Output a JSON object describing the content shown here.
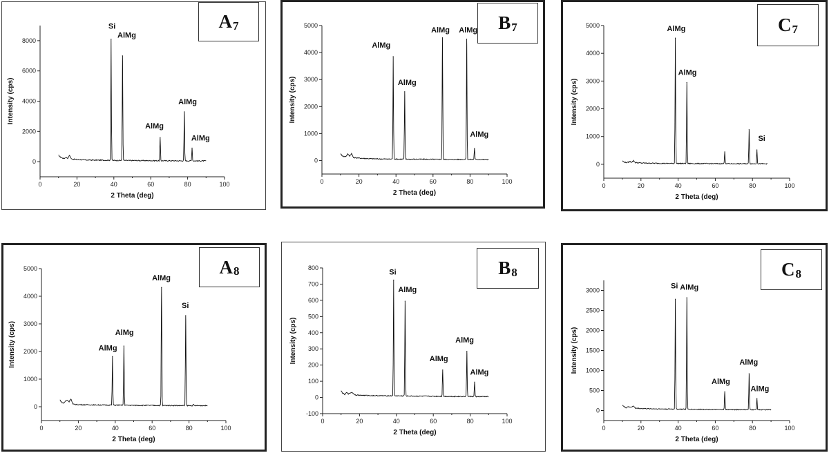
{
  "chart_data": [
    {
      "type": "line",
      "panel": "A7",
      "tag": {
        "letter": "A",
        "sub": "7"
      },
      "xlabel": "2 Theta (deg)",
      "ylabel": "Intensity (cps)",
      "xlim": [
        0,
        100
      ],
      "ylim": [
        -1000,
        9000
      ],
      "xticks": [
        0,
        20,
        40,
        60,
        80,
        100
      ],
      "yticks": [
        0,
        2000,
        4000,
        6000,
        8000
      ],
      "baseline": [
        [
          10,
          420
        ],
        [
          11,
          300
        ],
        [
          12,
          240
        ],
        [
          13,
          210
        ],
        [
          14,
          280
        ],
        [
          15,
          230
        ],
        [
          16,
          420
        ],
        [
          17,
          180
        ],
        [
          20,
          140
        ],
        [
          25,
          110
        ],
        [
          30,
          100
        ],
        [
          35,
          95
        ],
        [
          38,
          90
        ],
        [
          40,
          80
        ],
        [
          45,
          80
        ],
        [
          50,
          75
        ],
        [
          55,
          70
        ],
        [
          60,
          65
        ],
        [
          65,
          60
        ],
        [
          70,
          60
        ],
        [
          75,
          55
        ],
        [
          80,
          55
        ],
        [
          85,
          50
        ],
        [
          90,
          50
        ]
      ],
      "peaks": [
        {
          "x": 38.5,
          "y": 8100
        },
        {
          "x": 44.7,
          "y": 7000
        },
        {
          "x": 65.1,
          "y": 1600
        },
        {
          "x": 78.2,
          "y": 3300
        },
        {
          "x": 82.4,
          "y": 900
        }
      ],
      "annotations": [
        {
          "text": "Si",
          "x": 39,
          "y": 8800
        },
        {
          "text": "AlMg",
          "x": 47,
          "y": 8200
        },
        {
          "text": "AlMg",
          "x": 62,
          "y": 2200
        },
        {
          "text": "AlMg",
          "x": 80,
          "y": 3800
        },
        {
          "text": "AlMg",
          "x": 87,
          "y": 1400
        }
      ]
    },
    {
      "type": "line",
      "panel": "B7",
      "tag": {
        "letter": "B",
        "sub": "7"
      },
      "xlabel": "2 Theta (deg)",
      "ylabel": "Intensity (cps)",
      "xlim": [
        0,
        100
      ],
      "ylim": [
        -500,
        5000
      ],
      "xticks": [
        0,
        20,
        40,
        60,
        80,
        100
      ],
      "yticks": [
        0,
        1000,
        2000,
        3000,
        4000,
        5000
      ],
      "baseline": [
        [
          10,
          250
        ],
        [
          11,
          180
        ],
        [
          12,
          140
        ],
        [
          13,
          160
        ],
        [
          14,
          240
        ],
        [
          15,
          170
        ],
        [
          16,
          260
        ],
        [
          17,
          110
        ],
        [
          20,
          90
        ],
        [
          25,
          70
        ],
        [
          30,
          60
        ],
        [
          35,
          55
        ],
        [
          40,
          55
        ],
        [
          45,
          50
        ],
        [
          50,
          50
        ],
        [
          55,
          48
        ],
        [
          60,
          45
        ],
        [
          65,
          45
        ],
        [
          70,
          40
        ],
        [
          75,
          40
        ],
        [
          80,
          40
        ],
        [
          85,
          38
        ],
        [
          90,
          38
        ]
      ],
      "peaks": [
        {
          "x": 38.5,
          "y": 3850
        },
        {
          "x": 44.7,
          "y": 2550
        },
        {
          "x": 65.1,
          "y": 4550
        },
        {
          "x": 78.2,
          "y": 4500
        },
        {
          "x": 82.4,
          "y": 450
        }
      ],
      "annotations": [
        {
          "text": "AlMg",
          "x": 32,
          "y": 4180
        },
        {
          "text": "AlMg",
          "x": 46,
          "y": 2800
        },
        {
          "text": "AlMg",
          "x": 64,
          "y": 4750
        },
        {
          "text": "AlMg",
          "x": 79,
          "y": 4750
        },
        {
          "text": "AlMg",
          "x": 85,
          "y": 880
        }
      ]
    },
    {
      "type": "line",
      "panel": "C7",
      "tag": {
        "letter": "C",
        "sub": "7"
      },
      "xlabel": "2 Theta (deg)",
      "ylabel": "Intensity (cps)",
      "xlim": [
        0,
        100
      ],
      "ylim": [
        -500,
        5000
      ],
      "xticks": [
        0,
        20,
        40,
        60,
        80,
        100
      ],
      "yticks": [
        0,
        1000,
        2000,
        3000,
        4000,
        5000
      ],
      "baseline": [
        [
          10,
          120
        ],
        [
          11,
          80
        ],
        [
          12,
          60
        ],
        [
          13,
          70
        ],
        [
          14,
          100
        ],
        [
          15,
          80
        ],
        [
          16,
          130
        ],
        [
          17,
          60
        ],
        [
          20,
          45
        ],
        [
          25,
          40
        ],
        [
          30,
          35
        ],
        [
          35,
          30
        ],
        [
          40,
          30
        ],
        [
          45,
          28
        ],
        [
          50,
          25
        ],
        [
          55,
          25
        ],
        [
          60,
          22
        ],
        [
          65,
          22
        ],
        [
          70,
          20
        ],
        [
          75,
          20
        ],
        [
          80,
          20
        ],
        [
          85,
          18
        ],
        [
          88,
          18
        ]
      ],
      "peaks": [
        {
          "x": 38.5,
          "y": 4550
        },
        {
          "x": 44.7,
          "y": 2950
        },
        {
          "x": 65.1,
          "y": 450
        },
        {
          "x": 78.2,
          "y": 1250
        },
        {
          "x": 82.4,
          "y": 520
        }
      ],
      "annotations": [
        {
          "text": "AlMg",
          "x": 39,
          "y": 4800
        },
        {
          "text": "AlMg",
          "x": 45,
          "y": 3220
        },
        {
          "text": "Si",
          "x": 85,
          "y": 850
        }
      ]
    },
    {
      "type": "line",
      "panel": "A8",
      "tag": {
        "letter": "A",
        "sub": "8"
      },
      "xlabel": "2 Theta (deg)",
      "ylabel": "Intensity (cps)",
      "xlim": [
        0,
        100
      ],
      "ylim": [
        -500,
        5000
      ],
      "xticks": [
        0,
        20,
        40,
        60,
        80,
        100
      ],
      "yticks": [
        0,
        1000,
        2000,
        3000,
        4000,
        5000
      ],
      "baseline": [
        [
          10,
          250
        ],
        [
          11,
          160
        ],
        [
          12,
          130
        ],
        [
          13,
          200
        ],
        [
          14,
          240
        ],
        [
          15,
          180
        ],
        [
          16,
          290
        ],
        [
          17,
          90
        ],
        [
          20,
          75
        ],
        [
          25,
          70
        ],
        [
          30,
          65
        ],
        [
          35,
          60
        ],
        [
          40,
          60
        ],
        [
          45,
          55
        ],
        [
          50,
          50
        ],
        [
          55,
          50
        ],
        [
          60,
          48
        ],
        [
          65,
          45
        ],
        [
          70,
          45
        ],
        [
          75,
          42
        ],
        [
          80,
          40
        ],
        [
          85,
          40
        ],
        [
          90,
          40
        ]
      ],
      "peaks": [
        {
          "x": 38.5,
          "y": 1820
        },
        {
          "x": 44.7,
          "y": 2200
        },
        {
          "x": 65.1,
          "y": 4320
        },
        {
          "x": 78.2,
          "y": 3300
        },
        {
          "x": 82.4,
          "y": 80
        }
      ],
      "annotations": [
        {
          "text": "AlMg",
          "x": 36,
          "y": 2040
        },
        {
          "text": "AlMg",
          "x": 45,
          "y": 2600
        },
        {
          "text": "AlMg",
          "x": 65,
          "y": 4580
        },
        {
          "text": "Si",
          "x": 78,
          "y": 3570
        }
      ]
    },
    {
      "type": "line",
      "panel": "B8",
      "tag": {
        "letter": "B",
        "sub": "8"
      },
      "xlabel": "2 Theta (deg)",
      "ylabel": "Intensity (cps)",
      "xlim": [
        0,
        100
      ],
      "ylim": [
        -100,
        800
      ],
      "xticks": [
        0,
        20,
        40,
        60,
        80,
        100
      ],
      "yticks": [
        -100,
        0,
        100,
        200,
        300,
        400,
        500,
        600,
        700,
        800
      ],
      "baseline": [
        [
          10,
          40
        ],
        [
          11,
          25
        ],
        [
          12,
          18
        ],
        [
          13,
          30
        ],
        [
          14,
          22
        ],
        [
          15,
          28
        ],
        [
          16,
          32
        ],
        [
          17,
          20
        ],
        [
          18,
          15
        ],
        [
          20,
          14
        ],
        [
          25,
          12
        ],
        [
          30,
          11
        ],
        [
          35,
          10
        ],
        [
          40,
          10
        ],
        [
          45,
          9
        ],
        [
          50,
          8
        ],
        [
          55,
          8
        ],
        [
          60,
          7
        ],
        [
          65,
          7
        ],
        [
          70,
          6
        ],
        [
          75,
          6
        ],
        [
          80,
          6
        ],
        [
          85,
          5
        ],
        [
          90,
          5
        ]
      ],
      "peaks": [
        {
          "x": 38.5,
          "y": 725
        },
        {
          "x": 44.7,
          "y": 595
        },
        {
          "x": 65.1,
          "y": 170
        },
        {
          "x": 78.2,
          "y": 285
        },
        {
          "x": 82.4,
          "y": 95
        }
      ],
      "annotations": [
        {
          "text": "Si",
          "x": 38,
          "y": 760
        },
        {
          "text": "AlMg",
          "x": 46,
          "y": 650
        },
        {
          "text": "AlMg",
          "x": 63,
          "y": 225
        },
        {
          "text": "AlMg",
          "x": 77,
          "y": 340
        },
        {
          "text": "AlMg",
          "x": 85,
          "y": 140
        }
      ]
    },
    {
      "type": "line",
      "panel": "C8",
      "tag": {
        "letter": "C",
        "sub": "8"
      },
      "xlabel": "2 Theta (deg)",
      "ylabel": "Intensity (cps)",
      "xlim": [
        0,
        100
      ],
      "ylim": [
        -250,
        3250
      ],
      "xticks": [
        0,
        20,
        40,
        60,
        80,
        100
      ],
      "yticks": [
        0,
        500,
        1000,
        1500,
        2000,
        2500,
        3000
      ],
      "baseline": [
        [
          10,
          140
        ],
        [
          11,
          90
        ],
        [
          12,
          70
        ],
        [
          13,
          100
        ],
        [
          14,
          80
        ],
        [
          15,
          95
        ],
        [
          16,
          110
        ],
        [
          17,
          60
        ],
        [
          20,
          50
        ],
        [
          25,
          45
        ],
        [
          30,
          40
        ],
        [
          35,
          38
        ],
        [
          40,
          35
        ],
        [
          45,
          32
        ],
        [
          50,
          30
        ],
        [
          55,
          28
        ],
        [
          60,
          25
        ],
        [
          65,
          25
        ],
        [
          70,
          22
        ],
        [
          75,
          22
        ],
        [
          80,
          20
        ],
        [
          85,
          20
        ],
        [
          90,
          20
        ]
      ],
      "peaks": [
        {
          "x": 38.5,
          "y": 2780
        },
        {
          "x": 44.7,
          "y": 2820
        },
        {
          "x": 65.1,
          "y": 470
        },
        {
          "x": 78.2,
          "y": 920
        },
        {
          "x": 82.4,
          "y": 300
        }
      ],
      "annotations": [
        {
          "text": "Si",
          "x": 38,
          "y": 3050
        },
        {
          "text": "AlMg",
          "x": 46,
          "y": 3020
        },
        {
          "text": "AlMg",
          "x": 63,
          "y": 660
        },
        {
          "text": "AlMg",
          "x": 78,
          "y": 1150
        },
        {
          "text": "AlMg",
          "x": 84,
          "y": 480
        }
      ]
    }
  ]
}
